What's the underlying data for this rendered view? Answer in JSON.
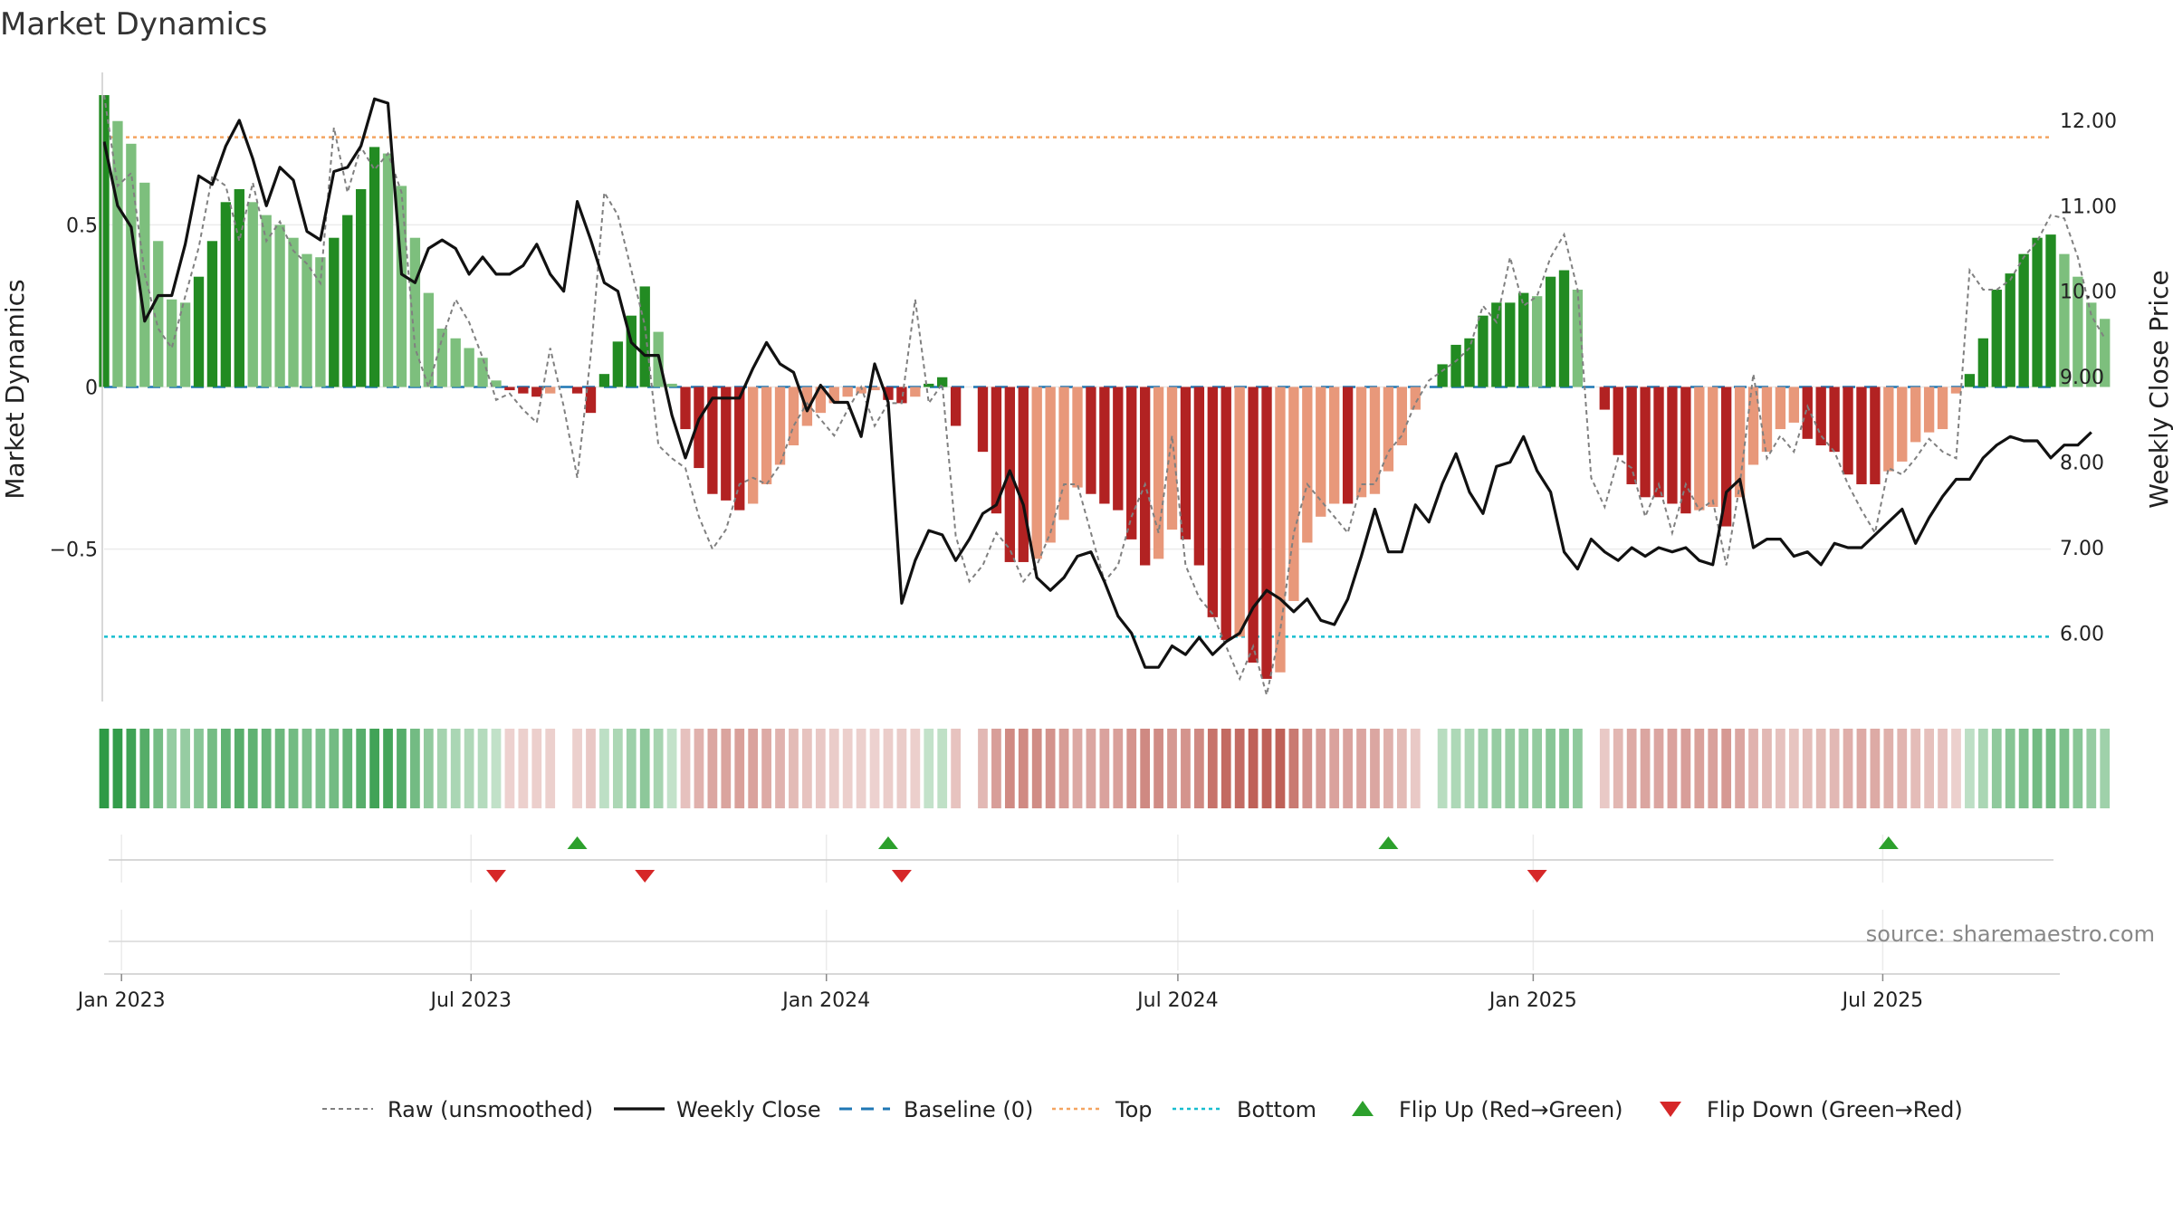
{
  "chart_data": {
    "type": "bar",
    "title": "Market Dynamics",
    "ylabel_left": "Market Dynamics",
    "ylabel_right": "Weekly Close Price",
    "source": "source: sharemaestro.com",
    "left_axis": {
      "ylim": [
        -0.97,
        0.97
      ],
      "ticks": [
        -0.5,
        0,
        0.5
      ],
      "tick_labels": [
        "−0.5",
        "0",
        "0.5"
      ]
    },
    "right_axis": {
      "ylim": [
        5.2,
        12.56
      ],
      "ticks": [
        6,
        7,
        8,
        9,
        10,
        11,
        12
      ],
      "tick_labels": [
        "6.00",
        "7.00",
        "8.00",
        "9.00",
        "10.00",
        "11.00",
        "12.00"
      ]
    },
    "x_axis": {
      "start": "2022-12-23",
      "end": "2025-09-26",
      "ticks": [
        "2023-01-01",
        "2023-07-01",
        "2024-01-01",
        "2024-07-01",
        "2025-01-01",
        "2025-07-01"
      ],
      "tick_labels": [
        "Jan 2023",
        "Jul 2023",
        "Jan 2024",
        "Jul 2024",
        "Jan 2025",
        "Jul 2025"
      ]
    },
    "weeks_start": "2022-12-23",
    "colors": {
      "pos_strong": "#228b22",
      "pos_weak": "#7dbf7d",
      "neg_strong": "#b22222",
      "neg_weak": "#e8987a",
      "raw": "#808080",
      "close": "#111111",
      "baseline": "#1f77b4",
      "top": "#f4a460",
      "bottom": "#17becf",
      "flip_up": "#2ca02c",
      "flip_down": "#d62728"
    },
    "top_level": 0.77,
    "bottom_level": -0.77,
    "baseline": 0,
    "values": [
      0.9,
      0.82,
      0.75,
      0.63,
      0.45,
      0.27,
      0.26,
      0.34,
      0.45,
      0.57,
      0.61,
      0.57,
      0.53,
      0.5,
      0.46,
      0.41,
      0.4,
      0.46,
      0.53,
      0.61,
      0.74,
      0.72,
      0.62,
      0.46,
      0.29,
      0.18,
      0.15,
      0.12,
      0.09,
      0.02,
      -0.01,
      -0.02,
      -0.03,
      -0.02,
      0,
      -0.02,
      -0.08,
      0.04,
      0.14,
      0.22,
      0.31,
      0.17,
      0.01,
      -0.13,
      -0.25,
      -0.33,
      -0.35,
      -0.38,
      -0.36,
      -0.3,
      -0.24,
      -0.18,
      -0.12,
      -0.08,
      -0.05,
      -0.03,
      -0.02,
      -0.01,
      -0.04,
      -0.05,
      -0.03,
      0.01,
      0.03,
      -0.12,
      0,
      -0.2,
      -0.39,
      -0.54,
      -0.54,
      -0.53,
      -0.48,
      -0.41,
      -0.31,
      -0.33,
      -0.36,
      -0.38,
      -0.47,
      -0.55,
      -0.53,
      -0.44,
      -0.47,
      -0.55,
      -0.71,
      -0.78,
      -0.77,
      -0.85,
      -0.9,
      -0.88,
      -0.66,
      -0.48,
      -0.4,
      -0.36,
      -0.36,
      -0.34,
      -0.33,
      -0.26,
      -0.18,
      -0.07,
      0,
      0.07,
      0.13,
      0.15,
      0.22,
      0.26,
      0.26,
      0.29,
      0.28,
      0.34,
      0.36,
      0.3,
      0,
      -0.07,
      -0.21,
      -0.3,
      -0.34,
      -0.34,
      -0.36,
      -0.39,
      -0.38,
      -0.37,
      -0.43,
      -0.34,
      -0.24,
      -0.2,
      -0.13,
      -0.11,
      -0.16,
      -0.18,
      -0.2,
      -0.27,
      -0.3,
      -0.3,
      -0.26,
      -0.23,
      -0.17,
      -0.14,
      -0.13,
      -0.02,
      0.04,
      0.15,
      0.3,
      0.35,
      0.41,
      0.46,
      0.47,
      0.41,
      0.34,
      0.26,
      0.21
    ],
    "raw_values": [
      0.9,
      0.62,
      0.66,
      0.35,
      0.18,
      0.12,
      0.28,
      0.43,
      0.65,
      0.62,
      0.45,
      0.63,
      0.45,
      0.51,
      0.42,
      0.38,
      0.32,
      0.8,
      0.6,
      0.74,
      0.67,
      0.72,
      0.6,
      0.12,
      0,
      0.15,
      0.27,
      0.2,
      0.09,
      -0.04,
      -0.02,
      -0.07,
      -0.11,
      0.12,
      -0.06,
      -0.28,
      0.1,
      0.6,
      0.53,
      0.36,
      0.19,
      -0.18,
      -0.22,
      -0.25,
      -0.4,
      -0.5,
      -0.44,
      -0.3,
      -0.28,
      -0.3,
      -0.24,
      -0.12,
      -0.05,
      -0.1,
      -0.15,
      -0.07,
      0,
      -0.12,
      -0.05,
      -0.05,
      0.27,
      -0.05,
      0.01,
      -0.46,
      -0.6,
      -0.55,
      -0.45,
      -0.5,
      -0.6,
      -0.55,
      -0.45,
      -0.3,
      -0.3,
      -0.45,
      -0.6,
      -0.55,
      -0.4,
      -0.3,
      -0.45,
      -0.15,
      -0.55,
      -0.65,
      -0.7,
      -0.8,
      -0.9,
      -0.8,
      -0.95,
      -0.75,
      -0.45,
      -0.3,
      -0.35,
      -0.4,
      -0.45,
      -0.3,
      -0.3,
      -0.2,
      -0.15,
      -0.05,
      0.02,
      0.05,
      0.08,
      0.12,
      0.25,
      0.2,
      0.4,
      0.25,
      0.28,
      0.4,
      0.47,
      0.3,
      -0.28,
      -0.37,
      -0.22,
      -0.25,
      -0.4,
      -0.3,
      -0.45,
      -0.3,
      -0.38,
      -0.35,
      -0.55,
      -0.3,
      0.04,
      -0.22,
      -0.15,
      -0.2,
      -0.06,
      -0.15,
      -0.2,
      -0.3,
      -0.38,
      -0.45,
      -0.25,
      -0.27,
      -0.22,
      -0.16,
      -0.2,
      -0.22,
      0.36,
      0.3,
      0.3,
      0.33,
      0.4,
      0.45,
      0.53,
      0.52,
      0.4,
      0.22,
      0.15
    ],
    "weekly_close": [
      11.75,
      11.0,
      10.75,
      9.65,
      9.95,
      9.95,
      10.55,
      11.35,
      11.25,
      11.7,
      12.0,
      11.55,
      11.0,
      11.45,
      11.3,
      10.7,
      10.6,
      11.4,
      11.45,
      11.7,
      12.25,
      12.2,
      10.2,
      10.1,
      10.5,
      10.6,
      10.5,
      10.2,
      10.4,
      10.2,
      10.2,
      10.3,
      10.55,
      10.2,
      10.0,
      11.05,
      10.6,
      10.1,
      10.0,
      9.4,
      9.25,
      9.25,
      8.55,
      8.05,
      8.5,
      8.75,
      8.75,
      8.75,
      9.1,
      9.4,
      9.15,
      9.05,
      8.6,
      8.9,
      8.7,
      8.7,
      8.3,
      9.15,
      8.7,
      6.35,
      6.85,
      7.2,
      7.15,
      6.85,
      7.1,
      7.4,
      7.5,
      7.9,
      7.5,
      6.65,
      6.5,
      6.65,
      6.9,
      6.95,
      6.6,
      6.2,
      6.0,
      5.6,
      5.6,
      5.85,
      5.75,
      5.95,
      5.75,
      5.9,
      6.0,
      6.3,
      6.5,
      6.4,
      6.25,
      6.4,
      6.15,
      6.1,
      6.4,
      6.9,
      7.45,
      6.95,
      6.95,
      7.5,
      7.3,
      7.75,
      8.1,
      7.65,
      7.4,
      7.95,
      8.0,
      8.3,
      7.9,
      7.65,
      6.95,
      6.75,
      7.1,
      6.95,
      6.85,
      7.0,
      6.9,
      7.0,
      6.95,
      7.0,
      6.85,
      6.8,
      7.65,
      7.8,
      7.0,
      7.1,
      7.1,
      6.9,
      6.95,
      6.8,
      7.05,
      7.0,
      7.0,
      7.15,
      7.3,
      7.45,
      7.05,
      7.35,
      7.6,
      7.8,
      7.8,
      8.05,
      8.2,
      8.3,
      8.25,
      8.25,
      8.05,
      8.2,
      8.2,
      8.35
    ],
    "flip_up_dates": [
      "2023-08-25",
      "2024-02-02",
      "2024-10-18",
      "2025-07-04"
    ],
    "flip_down_dates": [
      "2023-07-14",
      "2023-09-29",
      "2024-02-09",
      "2025-01-03"
    ],
    "legend": {
      "placement": "bottom",
      "entries": [
        {
          "key": "raw",
          "label": "Raw (unsmoothed)"
        },
        {
          "key": "close",
          "label": "Weekly Close"
        },
        {
          "key": "baseline",
          "label": "Baseline (0)"
        },
        {
          "key": "top",
          "label": "Top"
        },
        {
          "key": "bottom",
          "label": "Bottom"
        },
        {
          "key": "flip_up",
          "label": "Flip Up (Red→Green)"
        },
        {
          "key": "flip_down",
          "label": "Flip Down (Green→Red)"
        }
      ]
    }
  }
}
